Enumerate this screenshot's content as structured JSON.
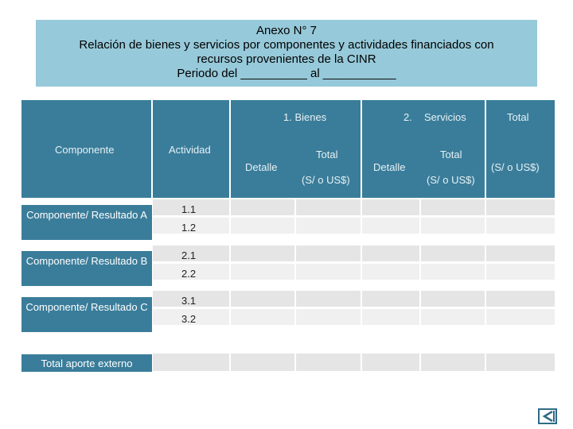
{
  "title": {
    "line1": "Anexo N° 7",
    "line2": "Relación de bienes y servicios por componentes y actividades financiados con",
    "line3": "recursos provenientes de la CINR",
    "line4": "Periodo del __________ al ___________"
  },
  "table": {
    "headers": {
      "componente": "Componente",
      "actividad": "Actividad",
      "bienes": "1.   Bienes",
      "servicios_num": "2.",
      "servicios": "Servicios",
      "total": "Total",
      "detalle": "Detalle",
      "subtotal": "Total",
      "unit": "(S/ o US$)",
      "total_unit": "(S/ o US$)"
    },
    "rows": [
      {
        "label": "Componente/ Resultado A",
        "activities": [
          "1.1",
          "1.2"
        ]
      },
      {
        "label": "Componente/ Resultado B",
        "activities": [
          "2.1",
          "2.2"
        ]
      },
      {
        "label": "Componente/ Resultado C",
        "activities": [
          "3.1",
          "3.2"
        ]
      }
    ],
    "footer": "Total aporte externo"
  },
  "nav": {
    "back_icon": "back-arrow-icon"
  }
}
